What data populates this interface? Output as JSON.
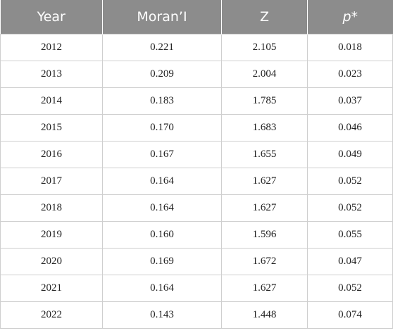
{
  "table": {
    "headers": [
      "Year",
      "Moran’I",
      "Z",
      "p*"
    ],
    "rows": [
      [
        "2012",
        "0.221",
        "2.105",
        "0.018"
      ],
      [
        "2013",
        "0.209",
        "2.004",
        "0.023"
      ],
      [
        "2014",
        "0.183",
        "1.785",
        "0.037"
      ],
      [
        "2015",
        "0.170",
        "1.683",
        "0.046"
      ],
      [
        "2016",
        "0.167",
        "1.655",
        "0.049"
      ],
      [
        "2017",
        "0.164",
        "1.627",
        "0.052"
      ],
      [
        "2018",
        "0.164",
        "1.627",
        "0.052"
      ],
      [
        "2019",
        "0.160",
        "1.596",
        "0.055"
      ],
      [
        "2020",
        "0.169",
        "1.672",
        "0.047"
      ],
      [
        "2021",
        "0.164",
        "1.627",
        "0.052"
      ],
      [
        "2022",
        "0.143",
        "1.448",
        "0.074"
      ]
    ]
  },
  "colors": {
    "header_bg": "#8c8c8c",
    "header_text": "#ffffff",
    "grid": "#cfcfcf"
  }
}
